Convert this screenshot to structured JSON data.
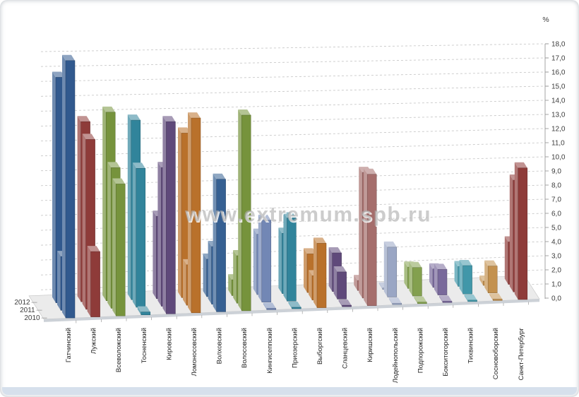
{
  "page": {
    "watermark": "www.extremum.spb.ru",
    "footer_strip_color": "#d6e0ec"
  },
  "chart_data": {
    "type": "bar",
    "style": "3d-column",
    "unit_label": "%",
    "value_axis": {
      "min": 0,
      "max": 18,
      "step": 1,
      "side": "right",
      "decimal_separator": ",",
      "tick_suffix": ",0"
    },
    "gridlines": "dashed",
    "depth_axis_labels": [
      "2012",
      "2011",
      "2010"
    ],
    "categories": [
      "Гатчинский",
      "Лужский",
      "Всеволожский",
      "Тосненский",
      "Кировский",
      "Ломоносовский",
      "Волховский",
      "Волосовский",
      "Кингисеппский",
      "Приозерский",
      "Выборгский",
      "Сланцевский",
      "Киришский",
      "Лодейнопольский",
      "Подпорожский",
      "Бокситогорский",
      "Тихвинский",
      "Сосновоборский",
      "Санкт-Петербург"
    ],
    "category_colors": [
      "#31598E",
      "#8E3B39",
      "#76933C",
      "#31849B",
      "#5F497A",
      "#B9712B",
      "#366092",
      "#76933C",
      "#7287B5",
      "#31849B",
      "#B9712B",
      "#5F497A",
      "#A56E6C",
      "#9AA6C4",
      "#83A04E",
      "#79699B",
      "#4197A9",
      "#C3914F",
      "#8E3B39"
    ],
    "series": [
      {
        "name": "2010",
        "values": [
          17.7,
          4.5,
          9.1,
          0.2,
          13.3,
          13.5,
          9.2,
          13.6,
          0.1,
          0.1,
          4.5,
          0.1,
          9.2,
          0.1,
          0.1,
          0.1,
          0.1,
          0.1,
          9.3
        ]
      },
      {
        "name": "2011",
        "values": [
          3.7,
          11.7,
          9.7,
          9.6,
          9.6,
          2.8,
          4.0,
          3.3,
          5.7,
          5.8,
          1.7,
          1.9,
          8.8,
          3.5,
          2.0,
          1.8,
          2.0,
          1.9,
          7.9
        ]
      },
      {
        "name": "2012",
        "values": [
          15.5,
          12.4,
          13.0,
          12.4,
          5.7,
          11.4,
          2.6,
          1.1,
          4.2,
          4.2,
          2.7,
          2.7,
          0.7,
          0.1,
          1.5,
          1.3,
          1.4,
          0.3,
          3.0
        ]
      }
    ],
    "colors": {
      "grid": "#c9c9c9",
      "axis": "#9a9a9a",
      "tick_text": "#3c3c3c",
      "floor": "#ebebeb",
      "floor_edge": "#ccd1d7",
      "watermark": "#aeaeae"
    }
  }
}
